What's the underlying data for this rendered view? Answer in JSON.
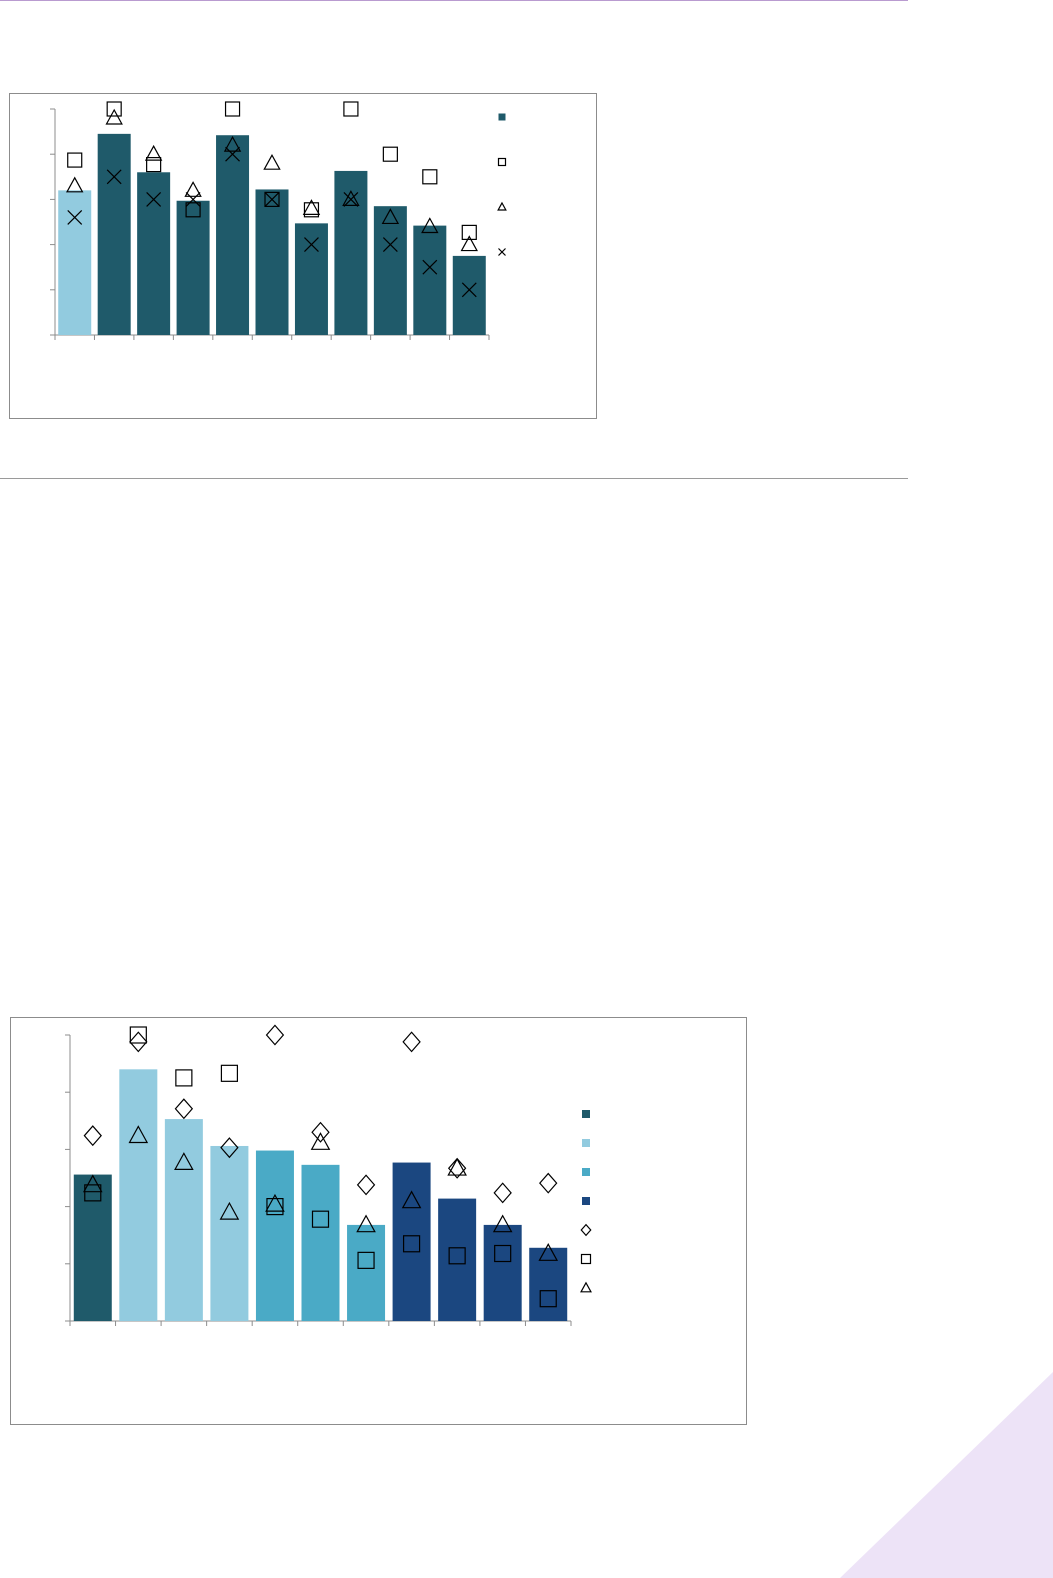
{
  "colors": {
    "page_rule_top": "#b99bd0",
    "page_rule_mid": "#9a9a9a",
    "corner_decoration": "#ede3f7",
    "teal_dark": "#1f5a6a",
    "teal_light": "#92cbdf",
    "teal_mid": "#4aaac6",
    "navy": "#1b4780",
    "marker": "#000000"
  },
  "chart_data": [
    {
      "type": "bar",
      "grid": false,
      "legend_position": "right",
      "title": "",
      "xlabel": "",
      "ylabel": "",
      "ylim": [
        0,
        5
      ],
      "ytick_count": 6,
      "categories_count": 11,
      "bar_values": [
        3.2,
        4.45,
        3.6,
        2.97,
        4.42,
        3.22,
        2.47,
        3.63,
        2.85,
        2.42,
        1.75
      ],
      "bar_colors": [
        "#92cbdf",
        "#1f5a6a",
        "#1f5a6a",
        "#1f5a6a",
        "#1f5a6a",
        "#1f5a6a",
        "#1f5a6a",
        "#1f5a6a",
        "#1f5a6a",
        "#1f5a6a",
        "#1f5a6a"
      ],
      "marker_series": [
        {
          "marker": "square",
          "values": [
            3.87,
            5.0,
            3.77,
            2.77,
            5.0,
            3.0,
            2.77,
            5.0,
            4.0,
            3.5,
            2.27
          ]
        },
        {
          "marker": "triangle",
          "values": [
            3.3,
            4.8,
            4.0,
            3.2,
            4.2,
            3.8,
            2.8,
            3.0,
            2.6,
            2.4,
            2.0
          ]
        },
        {
          "marker": "x",
          "values": [
            2.6,
            3.5,
            3.0,
            3.0,
            4.0,
            3.0,
            2.0,
            3.0,
            2.0,
            1.5,
            1.0
          ]
        }
      ],
      "legend_markers": [
        "bar",
        "square",
        "triangle",
        "x"
      ]
    },
    {
      "type": "bar",
      "grid": false,
      "legend_position": "right",
      "title": "",
      "xlabel": "",
      "ylabel": "",
      "ylim": [
        0,
        5
      ],
      "ytick_count": 6,
      "categories_count": 11,
      "bar_values": [
        2.56,
        4.4,
        3.53,
        3.06,
        2.98,
        2.73,
        1.68,
        2.77,
        2.14,
        1.68,
        1.28
      ],
      "bar_colors": [
        "#1f5a6a",
        "#92cbdf",
        "#92cbdf",
        "#92cbdf",
        "#4aaac6",
        "#4aaac6",
        "#4aaac6",
        "#1b4780",
        "#1b4780",
        "#1b4780",
        "#1b4780"
      ],
      "marker_series": [
        {
          "marker": "diamond",
          "values": [
            3.24,
            4.88,
            3.71,
            3.03,
            5.0,
            3.3,
            2.38,
            4.88,
            2.67,
            2.24,
            2.41
          ]
        },
        {
          "marker": "square",
          "values": [
            2.24,
            5.0,
            4.25,
            4.33,
            2.0,
            1.78,
            1.06,
            1.35,
            1.14,
            1.18,
            0.39
          ]
        },
        {
          "marker": "triangle",
          "values": [
            2.38,
            3.24,
            2.77,
            1.9,
            2.04,
            3.12,
            1.68,
            2.1,
            2.67,
            1.68,
            1.18
          ]
        }
      ],
      "legend_markers": [
        "bar",
        "bar",
        "bar",
        "bar",
        "diamond",
        "square",
        "triangle"
      ]
    }
  ]
}
